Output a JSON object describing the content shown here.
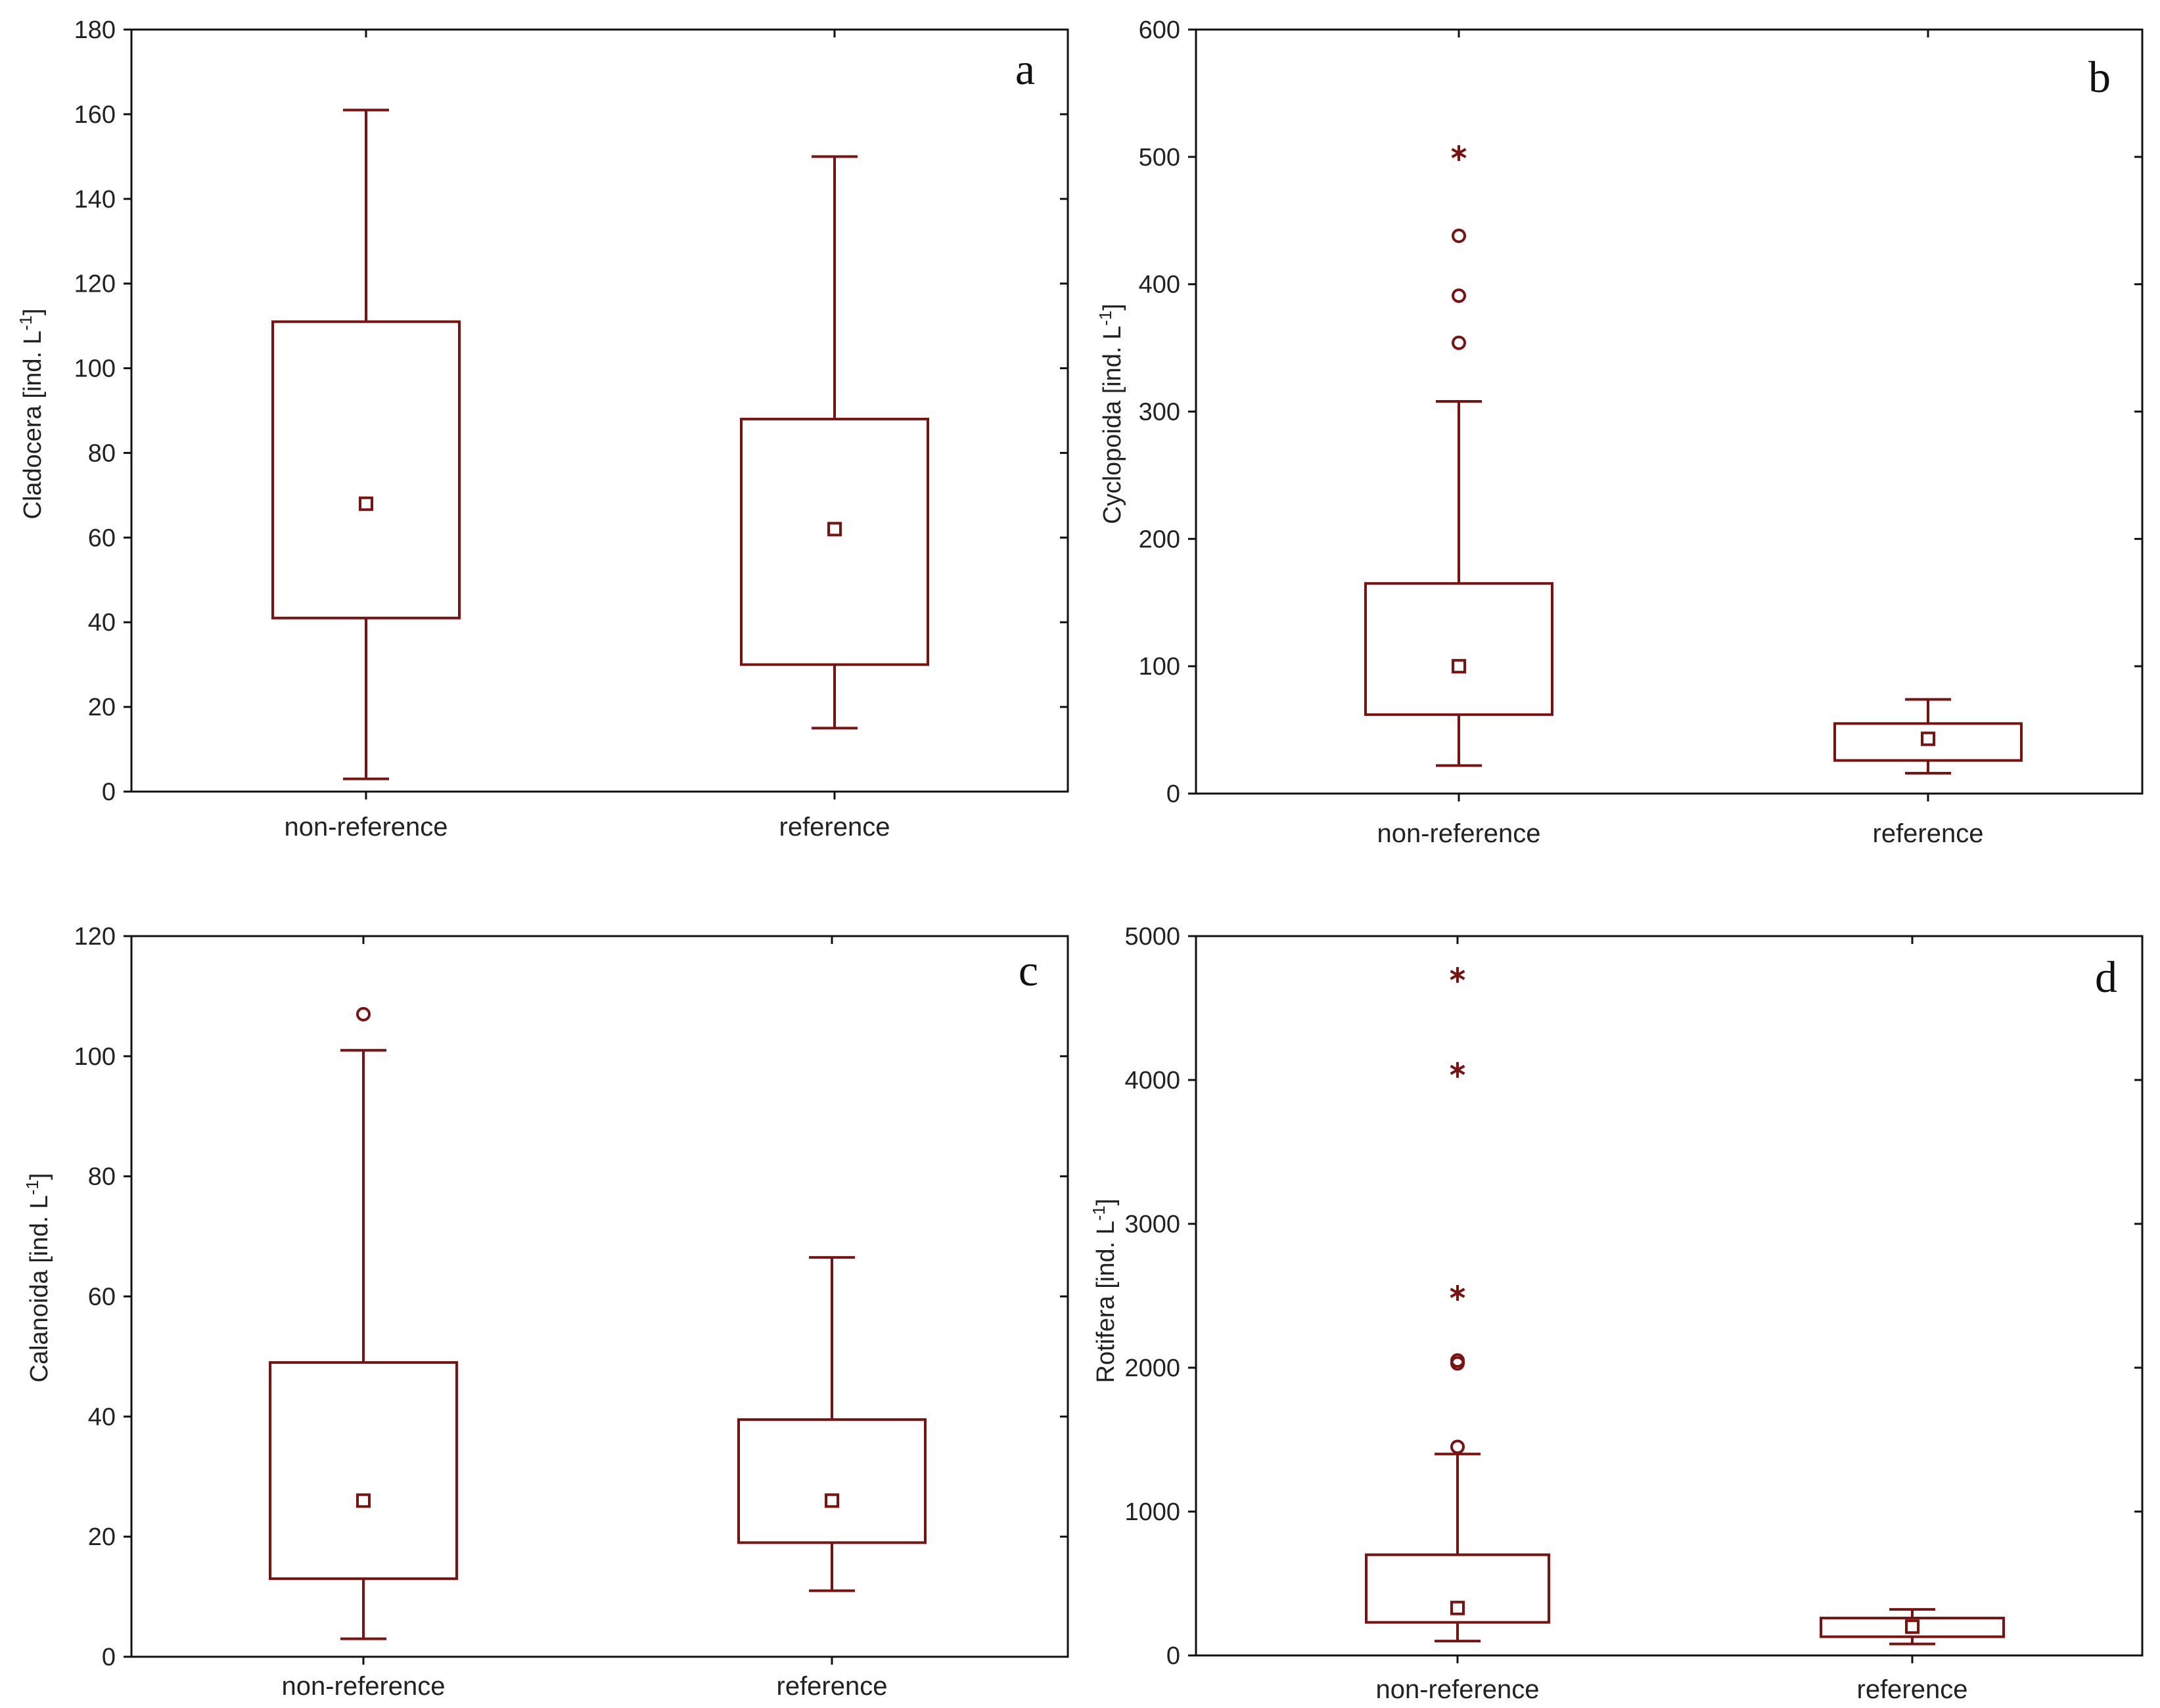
{
  "colors": {
    "plot": "#7a1212",
    "axis": "#111111",
    "text": "#222222"
  },
  "chart_data": [
    {
      "type": "box",
      "panel_letter": "a",
      "ylabel_main": "Cladocera [ind. L",
      "ylabel_sup": "-1",
      "ylabel_end": "]",
      "ylim": [
        0,
        180
      ],
      "yticks": [
        0,
        20,
        40,
        60,
        80,
        100,
        120,
        140,
        160,
        180
      ],
      "categories": [
        "non-reference",
        "reference"
      ],
      "boxes": [
        {
          "category": "non-reference",
          "whisker_low": 3,
          "q1": 41,
          "median": 68,
          "q3": 111,
          "whisker_high": 161,
          "outliers": [],
          "extremes": []
        },
        {
          "category": "reference",
          "whisker_low": 15,
          "q1": 30,
          "median": 62,
          "q3": 88,
          "whisker_high": 150,
          "outliers": [],
          "extremes": []
        }
      ]
    },
    {
      "type": "box",
      "panel_letter": "b",
      "ylabel_main": "Cyclopoida [ind. L",
      "ylabel_sup": "-1",
      "ylabel_end": "]",
      "ylim": [
        0,
        600
      ],
      "yticks": [
        0,
        100,
        200,
        300,
        400,
        500,
        600
      ],
      "categories": [
        "non-reference",
        "reference"
      ],
      "boxes": [
        {
          "category": "non-reference",
          "whisker_low": 22,
          "q1": 62,
          "median": 100,
          "q3": 165,
          "whisker_high": 308,
          "outliers": [
            354,
            391,
            438
          ],
          "extremes": [
            503
          ]
        },
        {
          "category": "reference",
          "whisker_low": 16,
          "q1": 26,
          "median": 43,
          "q3": 55,
          "whisker_high": 74,
          "outliers": [],
          "extremes": []
        }
      ]
    },
    {
      "type": "box",
      "panel_letter": "c",
      "ylabel_main": "Calanoida [ind. L",
      "ylabel_sup": "-1",
      "ylabel_end": "]",
      "ylim": [
        0,
        120
      ],
      "yticks": [
        0,
        20,
        40,
        60,
        80,
        100,
        120
      ],
      "categories": [
        "non-reference",
        "reference"
      ],
      "boxes": [
        {
          "category": "non-reference",
          "whisker_low": 3,
          "q1": 13,
          "median": 26,
          "q3": 49,
          "whisker_high": 101,
          "outliers": [
            107
          ],
          "extremes": []
        },
        {
          "category": "reference",
          "whisker_low": 11,
          "q1": 19,
          "median": 26,
          "q3": 39.5,
          "whisker_high": 66.5,
          "outliers": [],
          "extremes": []
        }
      ]
    },
    {
      "type": "box",
      "panel_letter": "d",
      "ylabel_main": "Rotifera [ind. L",
      "ylabel_sup": "-1",
      "ylabel_end": "]",
      "ylim": [
        0,
        5000
      ],
      "yticks": [
        0,
        1000,
        2000,
        3000,
        4000,
        5000
      ],
      "categories": [
        "non-reference",
        "reference"
      ],
      "boxes": [
        {
          "category": "non-reference",
          "whisker_low": 100,
          "q1": 230,
          "median": 330,
          "q3": 700,
          "whisker_high": 1400,
          "outliers": [
            1450,
            2030,
            2050
          ],
          "extremes": [
            2520,
            4070,
            4730
          ]
        },
        {
          "category": "reference",
          "whisker_low": 80,
          "q1": 130,
          "median": 200,
          "q3": 260,
          "whisker_high": 320,
          "outliers": [],
          "extremes": []
        }
      ]
    }
  ]
}
